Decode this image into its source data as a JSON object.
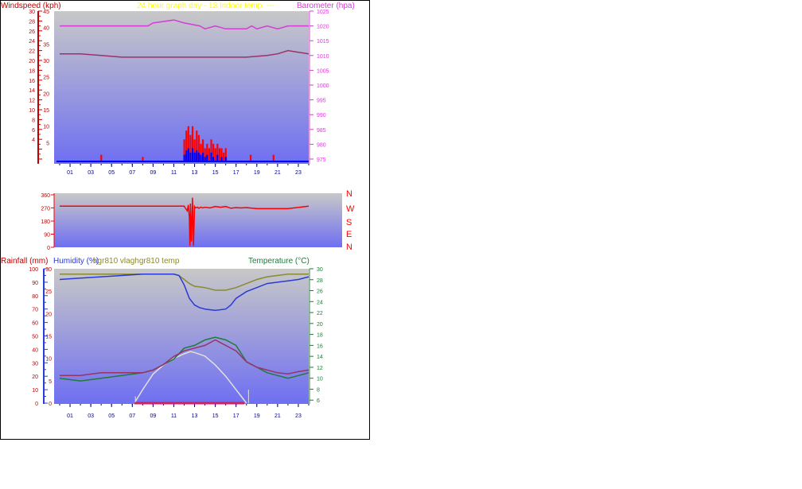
{
  "colors": {
    "plot_top": "#c8c8c8",
    "plot_bottom": "#6f6ff2",
    "windspeed_axis": "#c00000",
    "barometer": "#d63cd6",
    "wind_red": "#ff0000",
    "wind_blue": "#0000ff",
    "humidity": "#2a3ad8",
    "vlargh": "#8a8a30",
    "temp_hgr": "#993366",
    "temperature": "#1f7a3a",
    "solar": "#e0e0e0",
    "rain": "#cc2266",
    "title_yellow": "#ffff00",
    "xtick": "#000080"
  },
  "top": {
    "title_overlap": "24 hour graph day - 13 Indoor temp. ---",
    "windspeed_label": "Windspeed (kph)",
    "barometer_label": "Barometer (hpa)"
  },
  "middle": {
    "compass_labels": [
      "N",
      "W",
      "S",
      "E",
      "N"
    ]
  },
  "bottom": {
    "rainfall_label": "Rainfall (mm)",
    "humidity_label": "Humidity (%)",
    "overlap_label": "hgr810 vlaghgr810 temp",
    "temperature_label": "Temperature (°C)"
  },
  "chart_data": [
    {
      "type": "line",
      "title": "24 hour graph day - 13",
      "xlabel": "",
      "x_ticks": [
        "01",
        "03",
        "05",
        "07",
        "09",
        "11",
        "13",
        "15",
        "17",
        "19",
        "21",
        "23"
      ],
      "y_left": {
        "label": "Windspeed (kph)",
        "range": [
          0,
          30
        ],
        "ticks": [
          30,
          28,
          26,
          24,
          22,
          20,
          18,
          16,
          14,
          12,
          10,
          8,
          6,
          4
        ]
      },
      "y_left_inner": {
        "range": [
          0,
          45
        ],
        "ticks": [
          45,
          40,
          35,
          30,
          25,
          20,
          15,
          10,
          5
        ]
      },
      "y_right": {
        "label": "Barometer (hpa)",
        "range": [
          975,
          1025
        ],
        "ticks": [
          1025,
          1020,
          1015,
          1010,
          1005,
          1000,
          995,
          990,
          985,
          980,
          975
        ]
      },
      "series": [
        {
          "name": "Barometer",
          "axis": "right",
          "x": [
            0,
            8.5,
            9,
            11,
            12,
            13.5,
            14,
            15,
            16,
            17,
            18,
            18.5,
            19,
            20,
            21,
            22,
            24
          ],
          "y": [
            1020,
            1020,
            1021,
            1022,
            1021,
            1020,
            1019,
            1020,
            1019,
            1019,
            1019,
            1020,
            1019,
            1020,
            1019,
            1020,
            1020
          ]
        },
        {
          "name": "Indoor temp.",
          "axis": "left_inner",
          "x": [
            0,
            2,
            4,
            6,
            8,
            10,
            12,
            14,
            16,
            18,
            20,
            21,
            22,
            23,
            24
          ],
          "y": [
            32,
            32,
            31.5,
            31,
            31,
            31,
            31,
            31,
            31,
            31,
            31.5,
            32,
            33,
            32.5,
            32
          ]
        }
      ],
      "gust_bars": [
        {
          "x": 4.0,
          "v": 1.5
        },
        {
          "x": 8.0,
          "v": 1
        },
        {
          "x": 12.0,
          "v": 5
        },
        {
          "x": 12.2,
          "v": 7
        },
        {
          "x": 12.4,
          "v": 8
        },
        {
          "x": 12.6,
          "v": 6
        },
        {
          "x": 12.8,
          "v": 8
        },
        {
          "x": 13.0,
          "v": 5
        },
        {
          "x": 13.2,
          "v": 7
        },
        {
          "x": 13.4,
          "v": 6
        },
        {
          "x": 13.6,
          "v": 4
        },
        {
          "x": 13.8,
          "v": 5
        },
        {
          "x": 14.0,
          "v": 3
        },
        {
          "x": 14.2,
          "v": 4
        },
        {
          "x": 14.4,
          "v": 3
        },
        {
          "x": 14.6,
          "v": 5
        },
        {
          "x": 14.8,
          "v": 4
        },
        {
          "x": 15.0,
          "v": 3
        },
        {
          "x": 15.2,
          "v": 4
        },
        {
          "x": 15.4,
          "v": 3
        },
        {
          "x": 15.6,
          "v": 3
        },
        {
          "x": 15.8,
          "v": 2
        },
        {
          "x": 16.0,
          "v": 3
        },
        {
          "x": 18.4,
          "v": 1.5
        },
        {
          "x": 20.6,
          "v": 1.5
        }
      ],
      "avg_bars": [
        {
          "x": 12.0,
          "v": 1.5
        },
        {
          "x": 12.2,
          "v": 2.5
        },
        {
          "x": 12.4,
          "v": 3
        },
        {
          "x": 12.6,
          "v": 2
        },
        {
          "x": 12.8,
          "v": 3
        },
        {
          "x": 13.0,
          "v": 2
        },
        {
          "x": 13.2,
          "v": 2.5
        },
        {
          "x": 13.4,
          "v": 2
        },
        {
          "x": 13.6,
          "v": 1.5
        },
        {
          "x": 13.8,
          "v": 2
        },
        {
          "x": 14.0,
          "v": 1
        },
        {
          "x": 14.2,
          "v": 1.5
        },
        {
          "x": 14.6,
          "v": 2
        },
        {
          "x": 14.8,
          "v": 1
        },
        {
          "x": 15.2,
          "v": 1.5
        },
        {
          "x": 15.6,
          "v": 1
        },
        {
          "x": 16.0,
          "v": 1
        }
      ]
    },
    {
      "type": "line",
      "title": "",
      "y_left": {
        "range": [
          0,
          360
        ],
        "ticks": [
          360,
          270,
          180,
          90,
          0
        ]
      },
      "series": [
        {
          "name": "Wind direction",
          "x": [
            0,
            12,
            12.1,
            12.3,
            12.4,
            12.5,
            12.55,
            12.6,
            12.7,
            12.8,
            12.9,
            13.0,
            13.1,
            13.3,
            13.4,
            13.6,
            13.8,
            14,
            14.5,
            15,
            15.5,
            16,
            16.5,
            17,
            17.5,
            18,
            19,
            22,
            24
          ],
          "y": [
            282,
            282,
            270,
            250,
            290,
            200,
            10,
            300,
            40,
            340,
            10,
            280,
            270,
            275,
            268,
            275,
            270,
            275,
            270,
            280,
            275,
            280,
            268,
            272,
            270,
            272,
            265,
            265,
            282
          ]
        }
      ]
    },
    {
      "type": "line",
      "title": "",
      "y_left_outer": {
        "label": "Rainfall (mm)",
        "range": [
          0,
          100
        ],
        "ticks": [
          100,
          90,
          80,
          70,
          60,
          50,
          40,
          30,
          20,
          10,
          0
        ]
      },
      "y_left_inner": {
        "label": "Humidity (%)",
        "range": [
          0,
          30
        ],
        "ticks": [
          30,
          25,
          20,
          15,
          10,
          5,
          0
        ]
      },
      "y_right": {
        "label": "Temperature (°C)",
        "range": [
          4,
          30
        ],
        "ticks": [
          30,
          28,
          26,
          24,
          22,
          20,
          18,
          16,
          14,
          12,
          10,
          8,
          6
        ]
      },
      "series": [
        {
          "name": "Humidity",
          "axis": "left_outer",
          "x": [
            0,
            2,
            4,
            6,
            8,
            10,
            11,
            11.5,
            12,
            12.5,
            13,
            13.5,
            14,
            15,
            16,
            16.5,
            17,
            18,
            19,
            20,
            21,
            22,
            23,
            24
          ],
          "y": [
            92,
            93,
            94,
            95,
            96,
            96,
            96,
            95,
            88,
            78,
            73,
            71,
            70,
            69,
            70,
            73,
            78,
            83,
            86,
            89,
            90,
            91,
            92,
            94
          ]
        },
        {
          "name": "hgr810 vlag",
          "axis": "left_outer",
          "x": [
            0,
            4,
            8,
            10,
            11,
            11.5,
            12,
            12.5,
            13,
            14,
            15,
            16,
            17,
            18,
            19,
            20,
            22,
            24
          ],
          "y": [
            96,
            96,
            96,
            96,
            96,
            95,
            92,
            89,
            87,
            86,
            84,
            84,
            86,
            89,
            92,
            94,
            96,
            96
          ]
        },
        {
          "name": "hgr810 temp",
          "axis": "right",
          "x": [
            0,
            2,
            4,
            6,
            8,
            9,
            10,
            11,
            12,
            13,
            14,
            15,
            16,
            17,
            18,
            19,
            20,
            21,
            22,
            23,
            24
          ],
          "y": [
            10.5,
            10.5,
            11,
            11,
            11,
            11.5,
            12.5,
            14,
            15,
            15.5,
            16,
            17,
            16,
            15,
            13,
            12,
            11.5,
            11,
            10.8,
            11.2,
            11.5
          ]
        },
        {
          "name": "Temperature",
          "axis": "right",
          "x": [
            0,
            2,
            4,
            6,
            8,
            9,
            10,
            11,
            12,
            13,
            14,
            15,
            16,
            17,
            18,
            19,
            20,
            21,
            22,
            23,
            24
          ],
          "y": [
            10,
            9.5,
            10,
            10.5,
            11,
            11.5,
            12.5,
            13.5,
            15.5,
            16,
            17,
            17.5,
            17,
            16,
            13,
            12,
            11,
            10.5,
            10,
            10.5,
            11
          ]
        },
        {
          "name": "Solar",
          "axis": "left_inner",
          "x": [
            7.2,
            8,
            9,
            10,
            11,
            12,
            12.6,
            13,
            14,
            15,
            16,
            17,
            18
          ],
          "y": [
            0,
            3,
            6.5,
            8.5,
            10,
            11,
            11.5,
            11.3,
            10.5,
            8.5,
            6,
            3,
            0
          ]
        }
      ],
      "markers": [
        {
          "x": 7.3,
          "v": 1.5
        },
        {
          "x": 18.2,
          "v": 3
        }
      ],
      "rain_band": {
        "from": 7.2,
        "to": 17.8
      }
    }
  ]
}
